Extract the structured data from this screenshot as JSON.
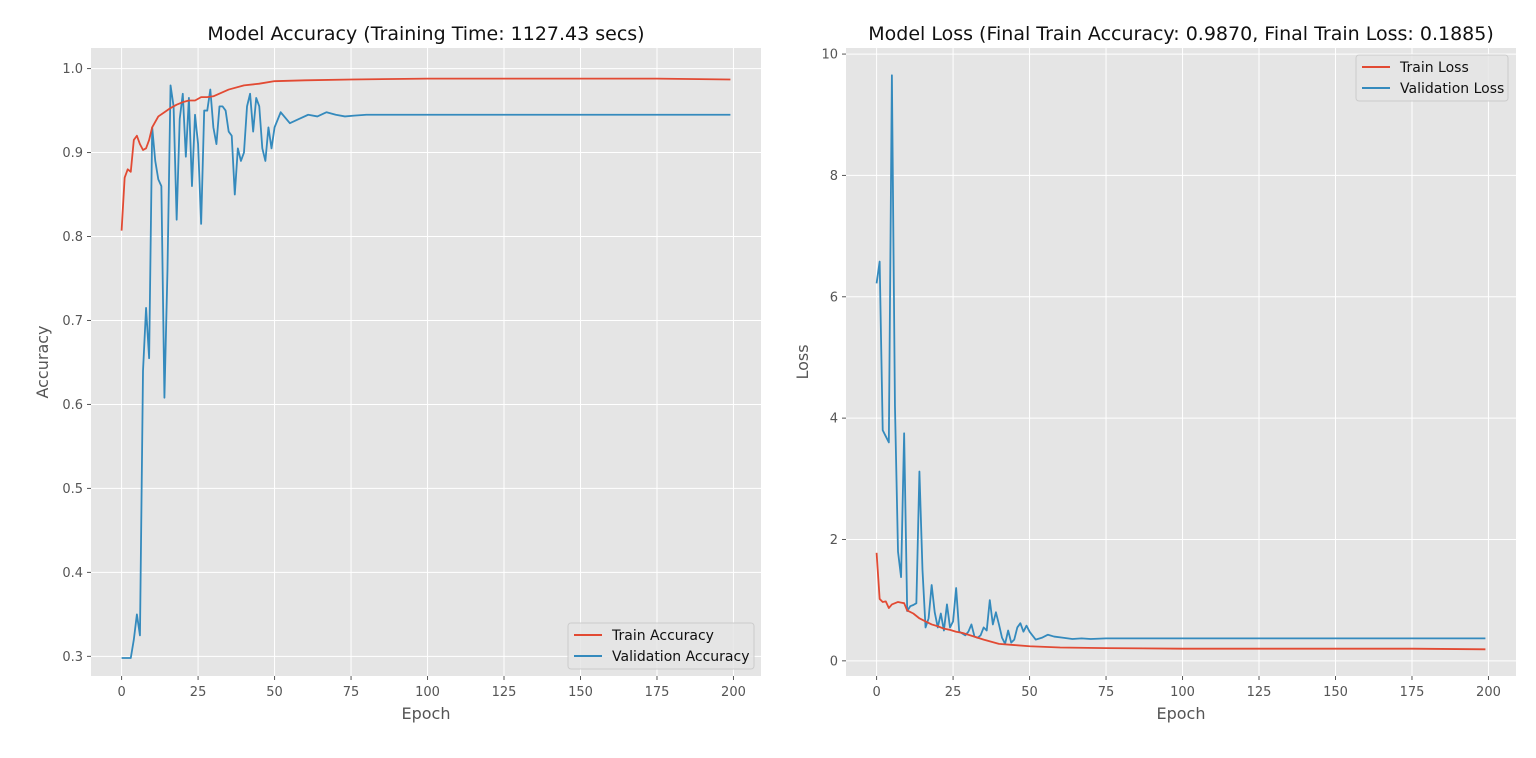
{
  "chart_data": [
    {
      "type": "line",
      "title": "Model Accuracy (Training Time: 1127.43 secs)",
      "xlabel": "Epoch",
      "ylabel": "Accuracy",
      "xlim": [
        -10,
        209
      ],
      "ylim": [
        0.2766,
        1.0245
      ],
      "xticks": [
        0,
        25,
        50,
        75,
        100,
        125,
        150,
        175,
        200
      ],
      "xtick_labels": [
        "0",
        "25",
        "50",
        "75",
        "100",
        "125",
        "150",
        "175",
        "200"
      ],
      "yticks": [
        0.3,
        0.4,
        0.5,
        0.6,
        0.7,
        0.8,
        0.9,
        1.0
      ],
      "ytick_labels": [
        "0.3",
        "0.4",
        "0.5",
        "0.6",
        "0.7",
        "0.8",
        "0.9",
        "1.0"
      ],
      "grid": true,
      "legend_position": "lower right",
      "series": [
        {
          "name": "Train Accuracy",
          "color": "#E24A33",
          "x": [
            0,
            1,
            2,
            3,
            4,
            5,
            6,
            7,
            8,
            9,
            10,
            12,
            14,
            16,
            18,
            20,
            22,
            24,
            26,
            28,
            30,
            35,
            40,
            45,
            50,
            60,
            75,
            100,
            125,
            150,
            175,
            199
          ],
          "values": [
            0.807,
            0.87,
            0.88,
            0.877,
            0.915,
            0.92,
            0.91,
            0.903,
            0.905,
            0.915,
            0.93,
            0.943,
            0.948,
            0.953,
            0.957,
            0.96,
            0.962,
            0.962,
            0.966,
            0.966,
            0.967,
            0.975,
            0.98,
            0.982,
            0.985,
            0.986,
            0.987,
            0.988,
            0.988,
            0.988,
            0.988,
            0.987
          ]
        },
        {
          "name": "Validation Accuracy",
          "color": "#348ABD",
          "x": [
            0,
            1,
            2,
            3,
            4,
            5,
            6,
            7,
            8,
            9,
            10,
            11,
            12,
            13,
            14,
            15,
            16,
            17,
            18,
            19,
            20,
            21,
            22,
            23,
            24,
            25,
            26,
            27,
            28,
            29,
            30,
            31,
            32,
            33,
            34,
            35,
            36,
            37,
            38,
            39,
            40,
            41,
            42,
            43,
            44,
            45,
            46,
            47,
            48,
            49,
            50,
            52,
            55,
            58,
            61,
            64,
            67,
            70,
            73,
            76,
            80,
            90,
            100,
            110,
            120,
            130,
            140,
            150,
            160,
            170,
            180,
            190,
            199
          ],
          "values": [
            0.298,
            0.298,
            0.298,
            0.298,
            0.32,
            0.35,
            0.325,
            0.64,
            0.715,
            0.655,
            0.93,
            0.89,
            0.868,
            0.86,
            0.608,
            0.76,
            0.98,
            0.955,
            0.82,
            0.94,
            0.97,
            0.895,
            0.965,
            0.86,
            0.945,
            0.91,
            0.815,
            0.95,
            0.95,
            0.975,
            0.93,
            0.91,
            0.955,
            0.955,
            0.95,
            0.925,
            0.92,
            0.85,
            0.905,
            0.89,
            0.9,
            0.955,
            0.97,
            0.925,
            0.965,
            0.955,
            0.905,
            0.89,
            0.93,
            0.905,
            0.93,
            0.948,
            0.935,
            0.94,
            0.945,
            0.943,
            0.948,
            0.945,
            0.943,
            0.944,
            0.945,
            0.945,
            0.945,
            0.945,
            0.945,
            0.945,
            0.945,
            0.945,
            0.945,
            0.945,
            0.945,
            0.945,
            0.945
          ]
        }
      ]
    },
    {
      "type": "line",
      "title": "Model Loss (Final Train Accuracy: 0.9870, Final Train Loss: 0.1885)",
      "xlabel": "Epoch",
      "ylabel": "Loss",
      "xlim": [
        -10,
        209
      ],
      "ylim": [
        -0.25,
        10.1
      ],
      "xticks": [
        0,
        25,
        50,
        75,
        100,
        125,
        150,
        175,
        200
      ],
      "xtick_labels": [
        "0",
        "25",
        "50",
        "75",
        "100",
        "125",
        "150",
        "175",
        "200"
      ],
      "yticks": [
        0,
        2,
        4,
        6,
        8,
        10
      ],
      "ytick_labels": [
        "0",
        "2",
        "4",
        "6",
        "8",
        "10"
      ],
      "grid": true,
      "legend_position": "upper right",
      "series": [
        {
          "name": "Train Loss",
          "color": "#E24A33",
          "x": [
            0,
            1,
            2,
            3,
            4,
            5,
            6,
            7,
            8,
            9,
            10,
            12,
            14,
            16,
            18,
            20,
            22,
            24,
            26,
            28,
            30,
            35,
            40,
            45,
            50,
            60,
            75,
            100,
            125,
            150,
            175,
            199
          ],
          "values": [
            1.78,
            1.02,
            0.97,
            0.98,
            0.87,
            0.93,
            0.95,
            0.97,
            0.96,
            0.95,
            0.83,
            0.78,
            0.7,
            0.65,
            0.6,
            0.57,
            0.53,
            0.51,
            0.48,
            0.46,
            0.43,
            0.35,
            0.28,
            0.26,
            0.24,
            0.22,
            0.21,
            0.2,
            0.2,
            0.2,
            0.2,
            0.19
          ]
        },
        {
          "name": "Validation Loss",
          "color": "#348ABD",
          "x": [
            0,
            1,
            2,
            3,
            4,
            5,
            6,
            7,
            8,
            9,
            10,
            11,
            12,
            13,
            14,
            15,
            16,
            17,
            18,
            19,
            20,
            21,
            22,
            23,
            24,
            25,
            26,
            27,
            28,
            29,
            30,
            31,
            32,
            33,
            34,
            35,
            36,
            37,
            38,
            39,
            40,
            41,
            42,
            43,
            44,
            45,
            46,
            47,
            48,
            49,
            50,
            52,
            54,
            56,
            58,
            61,
            64,
            67,
            70,
            75,
            80,
            90,
            100,
            110,
            120,
            130,
            140,
            150,
            160,
            170,
            180,
            190,
            199
          ],
          "values": [
            6.22,
            6.58,
            3.8,
            3.7,
            3.6,
            9.65,
            4.2,
            1.8,
            1.38,
            3.75,
            0.82,
            0.9,
            0.92,
            0.95,
            3.12,
            1.5,
            0.55,
            0.7,
            1.25,
            0.8,
            0.55,
            0.78,
            0.5,
            0.93,
            0.55,
            0.65,
            1.2,
            0.48,
            0.45,
            0.42,
            0.48,
            0.6,
            0.4,
            0.38,
            0.42,
            0.55,
            0.5,
            1.0,
            0.6,
            0.8,
            0.6,
            0.38,
            0.28,
            0.5,
            0.3,
            0.35,
            0.55,
            0.62,
            0.48,
            0.58,
            0.48,
            0.35,
            0.38,
            0.43,
            0.4,
            0.38,
            0.36,
            0.37,
            0.36,
            0.37,
            0.37,
            0.37,
            0.37,
            0.37,
            0.37,
            0.37,
            0.37,
            0.37,
            0.37,
            0.37,
            0.37,
            0.37,
            0.37
          ]
        }
      ]
    }
  ]
}
